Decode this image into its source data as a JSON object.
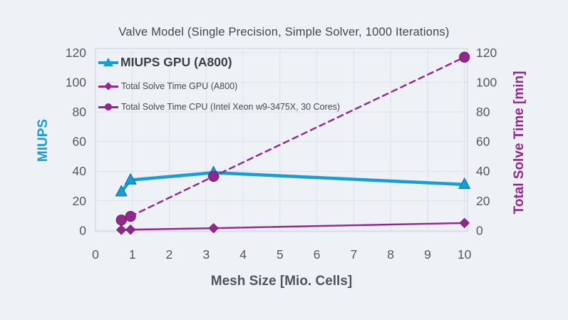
{
  "page": {
    "background": "#eef1f5"
  },
  "colors": {
    "cyan": "#189dd4",
    "purple": "#93278f",
    "title_text": "#474747",
    "tick_text": "#55595e",
    "axis_text": "#50555b",
    "legend_big_text": "#3c4044",
    "legend_text": "#46494d",
    "grid": "#dde2e8",
    "border": "#d3d9e0"
  },
  "chart_data": {
    "type": "line",
    "title": "Valve Model (Single Precision, Simple Solver, 1000 Iterations)",
    "xlabel": "Mesh Size [Mio. Cells]",
    "ylabel_left": "MIUPS",
    "ylabel_right": "Total Solve Time [min]",
    "xlim": [
      0,
      10.1
    ],
    "ylim_left": [
      0,
      120
    ],
    "ylim_right": [
      0,
      120
    ],
    "x_ticks": [
      0,
      1,
      2,
      3,
      4,
      5,
      6,
      7,
      8,
      9,
      10
    ],
    "y_ticks_left": [
      0,
      20,
      40,
      60,
      80,
      100,
      120
    ],
    "y_ticks_right": [
      0,
      20,
      40,
      60,
      80,
      100,
      120
    ],
    "grid": true,
    "legend_position": "top-left-inside",
    "x": [
      0.7,
      0.95,
      3.2,
      10
    ],
    "series": [
      {
        "name": "MIUPS GPU (A800)",
        "axis": "left",
        "marker": "triangle",
        "line": "solid",
        "color": "#189dd4",
        "values": [
          26,
          34,
          39,
          31
        ]
      },
      {
        "name": "Total Solve Time GPU (A800)",
        "axis": "right",
        "marker": "diamond",
        "line": "solid",
        "color": "#93278f",
        "values": [
          0.4,
          0.5,
          1.5,
          5
        ]
      },
      {
        "name": "Total Solve Time CPU (Intel Xeon w9-3475X, 30 Cores)",
        "axis": "right",
        "marker": "circle",
        "line": "dashed",
        "color": "#93278f",
        "values": [
          7,
          9.5,
          36.5,
          117
        ]
      }
    ]
  }
}
